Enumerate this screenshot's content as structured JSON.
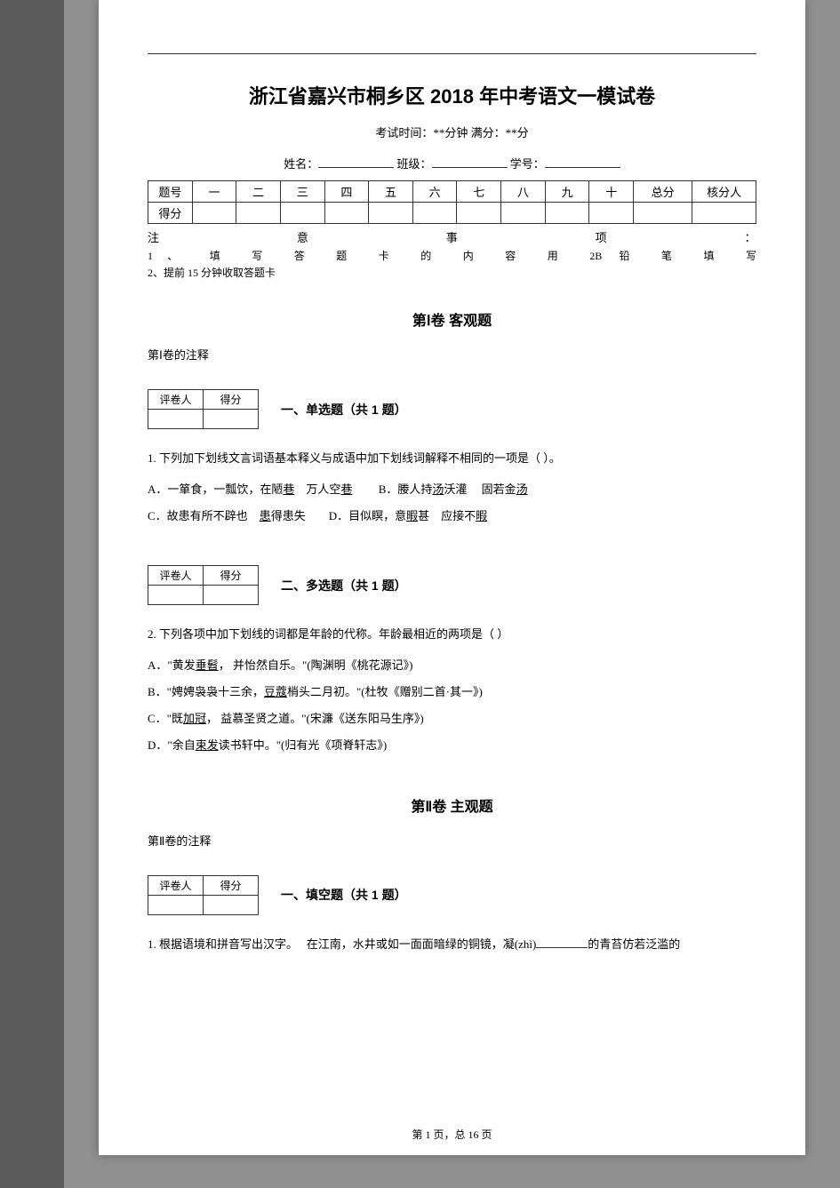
{
  "title": "浙江省嘉兴市桐乡区 2018 年中考语文一模试卷",
  "subtitle": "考试时间：**分钟 满分：**分",
  "fields": {
    "name_label": "姓名：",
    "class_label": "班级：",
    "id_label": "学号："
  },
  "score_table": {
    "row1_label": "题号",
    "row2_label": "得分",
    "cols": [
      "一",
      "二",
      "三",
      "四",
      "五",
      "六",
      "七",
      "八",
      "九",
      "十"
    ],
    "total": "总分",
    "checker": "核分人"
  },
  "attention": {
    "heading_parts": [
      "注",
      "意",
      "事",
      "项",
      "："
    ],
    "line1": "1、 填 写 答 题 卡 的 内 容 用 2B 铅 笔 填 写",
    "line2": "2、提前 15 分钟收取答题卡"
  },
  "part1": {
    "title": "第Ⅰ卷 客观题",
    "note": "第Ⅰ卷的注释"
  },
  "grader_table": {
    "col1": "评卷人",
    "col2": "得分"
  },
  "q_type_1": {
    "title": "一、单选题（共 1 题）",
    "q_number": "1.",
    "stem": "下列加下划线文言词语基本释义与成语中加下划线词解释不相同的一项是（   ）。",
    "opt_a_1": "A．一箪食，一瓢饮，在陋",
    "opt_a_u1": "巷",
    "opt_a_2": "　万人空",
    "opt_a_u2": "巷",
    "opt_b_1": "B．媵人持",
    "opt_b_u1": "汤",
    "opt_b_2": "沃灌　 固若金",
    "opt_b_u2": "汤",
    "opt_c_1": "C．故患有所不辟也　",
    "opt_c_u1": "患",
    "opt_c_2": "得患失",
    "opt_d_1": "D．目似瞑，意",
    "opt_d_u1": "暇",
    "opt_d_2": "甚　应接不",
    "opt_d_u2": "暇"
  },
  "q_type_2": {
    "title": "二、多选题（共 1 题）",
    "q_number": "2.",
    "stem": "下列各项中加下划线的词都是年龄的代称。年龄最相近的两项是（    ）",
    "opt_a_1": "A．\"黄发",
    "opt_a_u1": "垂髫",
    "opt_a_2": "， 并怡然自乐。\"(陶渊明《桃花源记》)",
    "opt_b_1": "B．\"娉娉袅袅十三余，",
    "opt_b_u1": "豆蔻",
    "opt_b_2": "梢头二月初。\"(杜牧《赠别二首·其一》)",
    "opt_c_1": "C．\"既",
    "opt_c_u1": "加冠",
    "opt_c_2": "， 益慕圣贤之道。\"(宋濂《送东阳马生序》)",
    "opt_d_1": "D．\"余自",
    "opt_d_u1": "束发",
    "opt_d_2": "读书轩中。\"(归有光《项脊轩志》)"
  },
  "part2": {
    "title": "第Ⅱ卷 主观题",
    "note": "第Ⅱ卷的注释"
  },
  "q_type_3": {
    "title": "一、填空题（共 1 题）",
    "q_number": "1.",
    "stem_1": "根据语境和拼音写出汉字。　 在江南，水井或如一面面暗绿的铜镜，凝(zhì)",
    "stem_2": "的青苔仿若泛滥的"
  },
  "footer": "第 1 页，总 16 页"
}
